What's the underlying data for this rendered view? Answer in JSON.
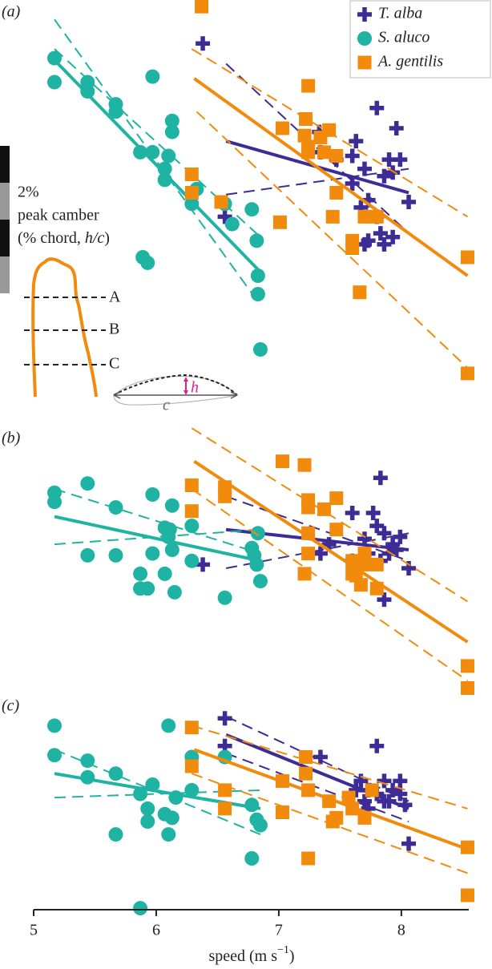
{
  "chart_data": [
    {
      "type": "scatter",
      "panel_label": "(a)",
      "ylim": [
        0,
        22
      ],
      "scale_bar": {
        "value": 2,
        "label": "2%",
        "line1": "peak camber",
        "line2a": "(% chord, ",
        "line2b": "h/c",
        "line2c": ")"
      },
      "inset_labels": [
        "A",
        "B",
        "C"
      ],
      "camber_labels": [
        "h",
        "c"
      ],
      "series": [
        {
          "name": "T. alba",
          "color": "#3d2b96",
          "marker": "plus",
          "x": [
            6.38,
            6.56,
            7.33,
            7.34,
            7.47,
            7.6,
            7.6,
            7.63,
            7.7,
            7.73,
            7.8,
            7.8,
            7.83,
            7.86,
            7.9,
            7.93,
            7.96,
            7.99,
            8.06,
            7.73,
            7.7,
            7.86,
            7.93,
            7.67
          ],
          "values": [
            19.6,
            10.2,
            14.8,
            13.7,
            13.3,
            13.5,
            12.0,
            14.3,
            12.8,
            11.1,
            16.1,
            10.2,
            9.3,
            12.4,
            13.3,
            12.6,
            15.0,
            13.3,
            11.0,
            8.9,
            8.7,
            8.7,
            9.1,
            10.7
          ],
          "fit": {
            "x": [
              6.57,
              8.06
            ],
            "y": [
              14.3,
              11.5
            ]
          },
          "ci_upper": {
            "x": [
              6.57,
              8.06
            ],
            "y": [
              18.5,
              9.3
            ]
          },
          "ci_lower": {
            "x": [
              6.57,
              8.06
            ],
            "y": [
              11.4,
              12.8
            ]
          }
        },
        {
          "name": "S. aluco",
          "color": "#1fb3a3",
          "marker": "circle",
          "x": [
            5.17,
            5.17,
            5.44,
            5.44,
            5.67,
            5.67,
            5.97,
            5.87,
            5.97,
            6.07,
            6.1,
            6.13,
            6.13,
            6.07,
            6.29,
            6.33,
            6.56,
            6.62,
            6.78,
            6.82,
            6.83,
            6.83,
            6.85,
            5.89,
            5.93
          ],
          "values": [
            18.8,
            17.5,
            17.5,
            17.0,
            16.3,
            15.9,
            17.8,
            13.7,
            13.7,
            12.8,
            13.5,
            15.4,
            14.8,
            12.2,
            10.9,
            11.7,
            10.9,
            9.8,
            10.6,
            8.9,
            7.0,
            6.0,
            3.0,
            8.0,
            7.7
          ],
          "fit": {
            "x": [
              5.17,
              6.85
            ],
            "y": [
              18.7,
              7.2
            ]
          },
          "ci_upper": {
            "x": [
              5.17,
              6.85
            ],
            "y": [
              20.9,
              5.4
            ]
          },
          "ci_lower": {
            "x": [
              5.17,
              6.85
            ],
            "y": [
              19.3,
              9.1
            ]
          }
        },
        {
          "name": "A. gentilis",
          "color": "#f28b0c",
          "marker": "square",
          "x": [
            6.37,
            6.29,
            6.29,
            6.53,
            7.01,
            7.03,
            7.24,
            7.22,
            7.21,
            7.24,
            7.34,
            7.37,
            7.41,
            7.44,
            7.47,
            7.6,
            7.6,
            7.66,
            7.7,
            7.8,
            8.54,
            8.54,
            7.47,
            7.24
          ],
          "values": [
            21.6,
            12.5,
            11.5,
            11.0,
            9.9,
            15.0,
            17.3,
            15.5,
            14.6,
            14.0,
            14.5,
            13.7,
            14.9,
            10.2,
            11.5,
            8.9,
            8.5,
            6.1,
            10.2,
            10.2,
            8.0,
            1.7,
            13.5,
            13.7
          ],
          "fit": {
            "x": [
              6.31,
              8.54
            ],
            "y": [
              17.7,
              7.0
            ]
          },
          "ci_upper": {
            "x": [
              6.29,
              8.54
            ],
            "y": [
              19.3,
              10.2
            ]
          },
          "ci_lower": {
            "x": [
              6.33,
              8.54
            ],
            "y": [
              15.9,
              2.0
            ]
          }
        }
      ]
    },
    {
      "type": "scatter",
      "panel_label": "(b)",
      "ylim": [
        0,
        14
      ],
      "series": [
        {
          "name": "T. alba",
          "color": "#3d2b96",
          "marker": "plus",
          "x": [
            6.38,
            7.83,
            7.6,
            7.77,
            7.8,
            7.86,
            7.93,
            7.99,
            7.9,
            7.73,
            7.83,
            8.06,
            7.86,
            7.6,
            7.41,
            7.34,
            7.7,
            7.96
          ],
          "values": [
            7.2,
            11.9,
            10.0,
            10.0,
            9.3,
            8.9,
            8.3,
            8.7,
            7.8,
            7.8,
            7.4,
            7.0,
            5.3,
            7.4,
            8.3,
            7.8,
            8.6,
            8.0
          ],
          "fit": {
            "x": [
              6.57,
              8.06
            ],
            "y": [
              9.1,
              8.0
            ]
          },
          "ci_upper": {
            "x": [
              6.57,
              8.06
            ],
            "y": [
              10.9,
              7.4
            ]
          },
          "ci_lower": {
            "x": [
              6.57,
              8.06
            ],
            "y": [
              7.0,
              8.9
            ]
          }
        },
        {
          "name": "S. aluco",
          "color": "#1fb3a3",
          "marker": "circle",
          "x": [
            5.17,
            5.17,
            5.44,
            5.44,
            5.67,
            5.67,
            5.87,
            5.87,
            5.93,
            5.97,
            6.07,
            6.07,
            6.1,
            6.11,
            6.13,
            6.15,
            6.29,
            6.29,
            6.56,
            6.78,
            6.8,
            6.82,
            6.83,
            6.85,
            5.97,
            6.13
          ],
          "values": [
            11.1,
            10.6,
            11.6,
            7.7,
            10.3,
            7.7,
            6.7,
            5.9,
            5.9,
            11.0,
            6.7,
            9.2,
            8.7,
            9.1,
            8.0,
            5.7,
            9.3,
            7.4,
            5.4,
            8.1,
            7.7,
            7.2,
            8.9,
            6.3,
            7.8,
            10.4
          ],
          "fit": {
            "x": [
              5.17,
              6.85
            ],
            "y": [
              9.8,
              7.4
            ]
          },
          "ci_upper": {
            "x": [
              5.17,
              6.85
            ],
            "y": [
              11.3,
              7.8
            ]
          },
          "ci_lower": {
            "x": [
              5.17,
              6.85
            ],
            "y": [
              8.3,
              9.1
            ]
          }
        },
        {
          "name": "A. gentilis",
          "color": "#f28b0c",
          "marker": "square",
          "x": [
            6.29,
            6.29,
            6.56,
            6.56,
            7.03,
            7.21,
            7.24,
            7.24,
            7.24,
            7.21,
            7.24,
            7.37,
            7.47,
            7.6,
            7.63,
            7.67,
            7.7,
            7.7,
            7.6,
            7.8,
            7.8,
            7.47,
            8.54,
            8.54
          ],
          "values": [
            11.5,
            10.1,
            11.4,
            10.9,
            12.8,
            12.6,
            10.7,
            10.3,
            7.8,
            6.7,
            8.9,
            10.2,
            10.8,
            7.4,
            6.6,
            6.1,
            7.8,
            7.2,
            6.7,
            5.9,
            7.2,
            9.1,
            1.7,
            0.5
          ],
          "fit": {
            "x": [
              6.31,
              8.54
            ],
            "y": [
              12.8,
              3.0
            ]
          },
          "ci_upper": {
            "x": [
              6.29,
              8.54
            ],
            "y": [
              14.6,
              5.2
            ]
          },
          "ci_lower": {
            "x": [
              6.29,
              8.54
            ],
            "y": [
              11.3,
              0.9
            ]
          }
        }
      ]
    },
    {
      "type": "scatter",
      "panel_label": "(c)",
      "ylim": [
        0,
        11.5
      ],
      "xlim": [
        5,
        8.55
      ],
      "xticks": [
        5,
        6,
        7,
        8
      ],
      "xlabel": "speed (m s",
      "xlabel_exp": "−1",
      "xlabel_end": ")",
      "series": [
        {
          "name": "T. alba",
          "color": "#3d2b96",
          "marker": "plus",
          "x": [
            6.56,
            6.56,
            7.34,
            7.8,
            7.67,
            7.73,
            7.8,
            7.86,
            7.9,
            7.93,
            7.99,
            8.06,
            7.86,
            7.7,
            7.63,
            7.73,
            8.03,
            7.99
          ],
          "values": [
            10.6,
            9.1,
            8.5,
            9.1,
            7.2,
            6.7,
            6.5,
            7.2,
            6.1,
            6.7,
            7.2,
            3.8,
            6.1,
            6.1,
            6.7,
            5.7,
            5.9,
            6.5
          ],
          "fit": {
            "x": [
              6.57,
              8.06
            ],
            "y": [
              9.7,
              5.7
            ]
          },
          "ci_upper": {
            "x": [
              6.57,
              8.06
            ],
            "y": [
              10.7,
              6.1
            ]
          },
          "ci_lower": {
            "x": [
              6.57,
              8.06
            ],
            "y": [
              8.7,
              5.0
            ]
          }
        },
        {
          "name": "S. aluco",
          "color": "#1fb3a3",
          "marker": "circle",
          "x": [
            5.17,
            5.17,
            5.44,
            5.44,
            5.67,
            5.67,
            5.87,
            5.93,
            5.93,
            5.97,
            6.07,
            6.1,
            6.1,
            6.13,
            6.16,
            6.29,
            6.29,
            6.56,
            6.78,
            6.82,
            6.85,
            6.78,
            5.87
          ],
          "values": [
            10.2,
            8.6,
            8.3,
            7.4,
            7.6,
            4.3,
            6.5,
            5.7,
            5.0,
            7.0,
            5.4,
            10.2,
            4.3,
            5.2,
            6.3,
            8.5,
            6.7,
            8.5,
            5.9,
            5.1,
            4.8,
            3.0,
            0.3
          ],
          "fit": {
            "x": [
              5.17,
              6.85
            ],
            "y": [
              7.6,
              5.7
            ]
          },
          "ci_upper": {
            "x": [
              5.17,
              6.85
            ],
            "y": [
              8.9,
              4.3
            ]
          },
          "ci_lower": {
            "x": [
              5.17,
              6.85
            ],
            "y": [
              6.3,
              6.7
            ]
          }
        },
        {
          "name": "A. gentilis",
          "color": "#f28b0c",
          "marker": "square",
          "x": [
            6.29,
            6.29,
            6.56,
            6.56,
            7.03,
            7.03,
            7.22,
            7.22,
            7.24,
            7.24,
            7.41,
            7.44,
            7.57,
            7.6,
            7.7,
            7.76,
            8.54,
            8.54,
            7.47
          ],
          "values": [
            10.1,
            8.0,
            6.7,
            5.7,
            5.5,
            7.2,
            8.5,
            7.6,
            6.7,
            3.0,
            6.1,
            5.0,
            6.3,
            5.7,
            5.2,
            6.7,
            3.6,
            1.0,
            5.2
          ],
          "fit": {
            "x": [
              6.31,
              8.54
            ],
            "y": [
              8.9,
              3.5
            ]
          },
          "ci_upper": {
            "x": [
              6.29,
              8.54
            ],
            "y": [
              10.2,
              5.7
            ]
          },
          "ci_lower": {
            "x": [
              6.29,
              8.54
            ],
            "y": [
              7.6,
              2.2
            ]
          }
        }
      ]
    }
  ]
}
